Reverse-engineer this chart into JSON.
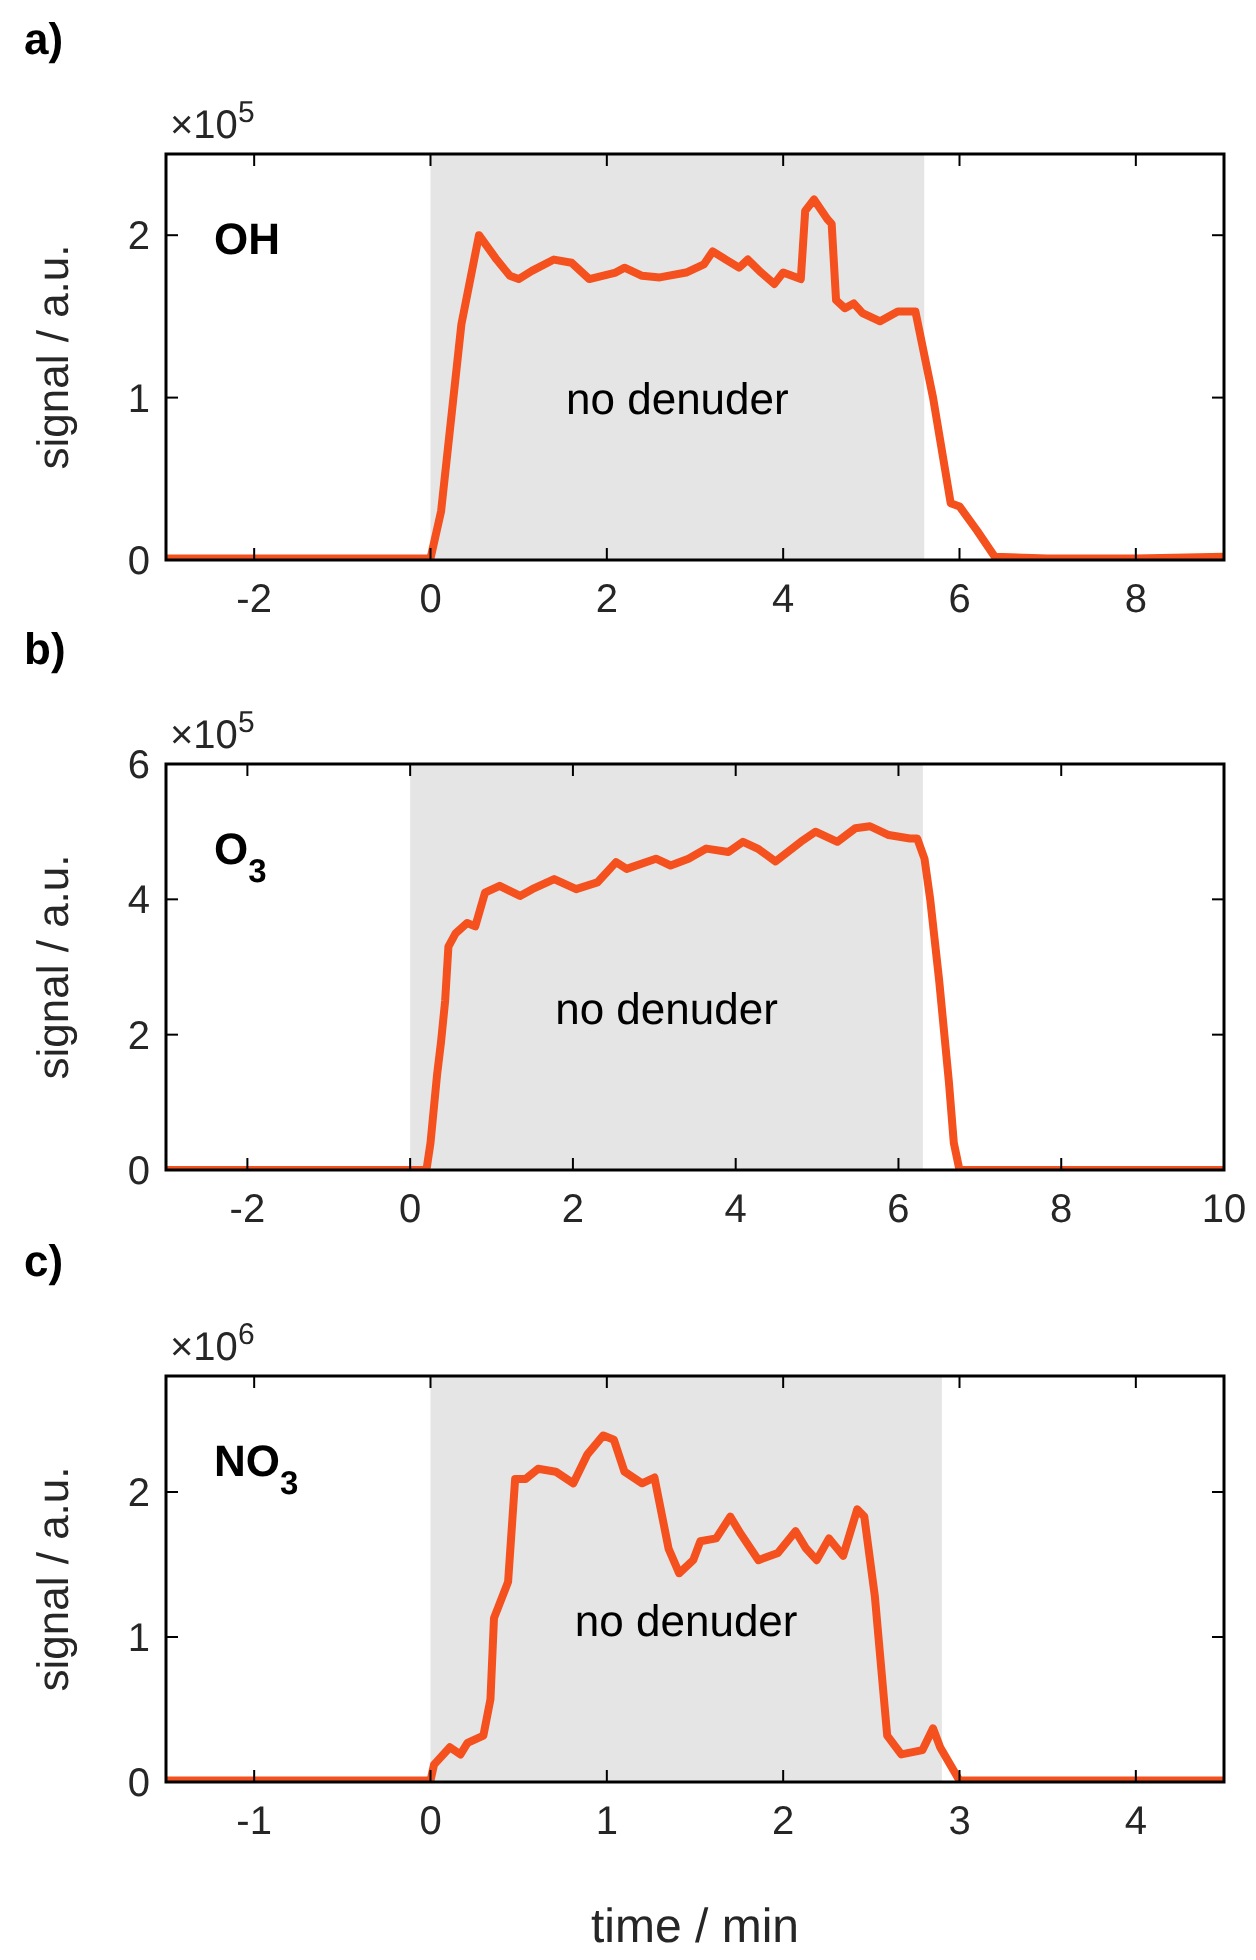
{
  "chart_data": [
    {
      "type": "line",
      "title": "a)",
      "ylabel": "signal / a.u.",
      "annotations": [
        "×10$^{5}$",
        "OH"
      ],
      "xlim": [
        -3,
        9
      ],
      "xticks": [
        -2,
        0,
        2,
        4,
        6,
        8
      ],
      "ylim": [
        0,
        2.5
      ],
      "yticks": [
        0,
        1,
        2
      ],
      "bands": [
        {
          "axis": "x",
          "from": 0,
          "to": 5.6,
          "label": "no denuder",
          "color": "#e5e5e5"
        }
      ],
      "series": [
        {
          "color": "#f4511e",
          "x": [
            -3,
            0,
            0.12,
            0.35,
            0.55,
            0.75,
            0.9,
            1.0,
            1.15,
            1.4,
            1.6,
            1.8,
            2.1,
            2.2,
            2.4,
            2.6,
            2.9,
            3.1,
            3.2,
            3.35,
            3.5,
            3.6,
            3.75,
            3.9,
            4.0,
            4.2,
            4.25,
            4.35,
            4.5,
            4.55,
            4.6,
            4.7,
            4.8,
            4.9,
            5.1,
            5.3,
            5.5,
            5.7,
            5.9,
            6.0,
            6.2,
            6.4,
            7,
            8,
            9
          ],
          "values": [
            0.01,
            0.01,
            0.3,
            1.45,
            2.0,
            1.85,
            1.75,
            1.73,
            1.78,
            1.85,
            1.83,
            1.73,
            1.77,
            1.8,
            1.75,
            1.74,
            1.77,
            1.82,
            1.9,
            1.85,
            1.8,
            1.85,
            1.77,
            1.7,
            1.77,
            1.73,
            2.15,
            2.22,
            2.1,
            2.07,
            1.6,
            1.55,
            1.58,
            1.52,
            1.47,
            1.53,
            1.53,
            1.0,
            0.35,
            0.33,
            0.18,
            0.02,
            0.01,
            0.01,
            0.02
          ]
        }
      ]
    },
    {
      "type": "line",
      "title": "b)",
      "ylabel": "signal / a.u.",
      "annotations": [
        "×10$^{5}$",
        "O$_{3}$"
      ],
      "xlim": [
        -3,
        10
      ],
      "xticks": [
        -2,
        0,
        2,
        4,
        6,
        8,
        10
      ],
      "ylim": [
        0,
        6
      ],
      "yticks": [
        0,
        2,
        4,
        6
      ],
      "bands": [
        {
          "axis": "x",
          "from": 0,
          "to": 6.3,
          "label": "no denuder",
          "color": "#e5e5e5"
        }
      ],
      "series": [
        {
          "color": "#f4511e",
          "x": [
            -3,
            0.2,
            0.25,
            0.29,
            0.33,
            0.38,
            0.43,
            0.47,
            0.56,
            0.7,
            0.8,
            0.92,
            1.1,
            1.35,
            1.5,
            1.77,
            2.04,
            2.3,
            2.53,
            2.66,
            3.02,
            3.2,
            3.42,
            3.64,
            3.91,
            4.09,
            4.27,
            4.49,
            4.8,
            4.98,
            5.25,
            5.47,
            5.65,
            5.88,
            6.14,
            6.23,
            6.32,
            6.39,
            6.5,
            6.62,
            6.68,
            6.75,
            10
          ],
          "values": [
            0,
            0,
            0.4,
            0.9,
            1.4,
            1.9,
            2.5,
            3.3,
            3.5,
            3.65,
            3.6,
            4.1,
            4.2,
            4.05,
            4.15,
            4.3,
            4.15,
            4.25,
            4.55,
            4.45,
            4.6,
            4.5,
            4.6,
            4.75,
            4.7,
            4.85,
            4.75,
            4.56,
            4.85,
            5.0,
            4.85,
            5.05,
            5.08,
            4.95,
            4.9,
            4.9,
            4.6,
            4.0,
            2.8,
            1.3,
            0.4,
            0,
            0
          ]
        }
      ]
    },
    {
      "type": "line",
      "title": "c)",
      "xlabel": "time / min",
      "ylabel": "signal / a.u.",
      "annotations": [
        "×10$^{6}$",
        "NO$_{3}$"
      ],
      "xlim": [
        -1.5,
        4.5
      ],
      "xticks": [
        -1,
        0,
        1,
        2,
        3,
        4
      ],
      "ylim": [
        0,
        2.8
      ],
      "yticks": [
        0,
        1,
        2
      ],
      "bands": [
        {
          "axis": "x",
          "from": 0,
          "to": 2.9,
          "label": "no denuder",
          "color": "#e5e5e5"
        }
      ],
      "series": [
        {
          "color": "#f4511e",
          "x": [
            -1.5,
            0,
            0.02,
            0.11,
            0.17,
            0.21,
            0.3,
            0.34,
            0.36,
            0.44,
            0.48,
            0.54,
            0.61,
            0.71,
            0.81,
            0.89,
            0.98,
            1.04,
            1.1,
            1.2,
            1.27,
            1.35,
            1.41,
            1.49,
            1.53,
            1.62,
            1.7,
            1.76,
            1.86,
            1.97,
            2.07,
            2.13,
            2.19,
            2.26,
            2.34,
            2.42,
            2.46,
            2.52,
            2.59,
            2.67,
            2.79,
            2.85,
            2.89,
            3.0,
            4.5
          ],
          "values": [
            0.01,
            0.01,
            0.12,
            0.24,
            0.19,
            0.27,
            0.32,
            0.57,
            1.13,
            1.38,
            2.09,
            2.09,
            2.16,
            2.14,
            2.06,
            2.26,
            2.39,
            2.36,
            2.14,
            2.06,
            2.1,
            1.61,
            1.44,
            1.53,
            1.66,
            1.68,
            1.83,
            1.71,
            1.53,
            1.58,
            1.73,
            1.61,
            1.53,
            1.68,
            1.56,
            1.88,
            1.83,
            1.28,
            0.32,
            0.19,
            0.22,
            0.37,
            0.24,
            0.01,
            0.01
          ]
        }
      ]
    }
  ]
}
